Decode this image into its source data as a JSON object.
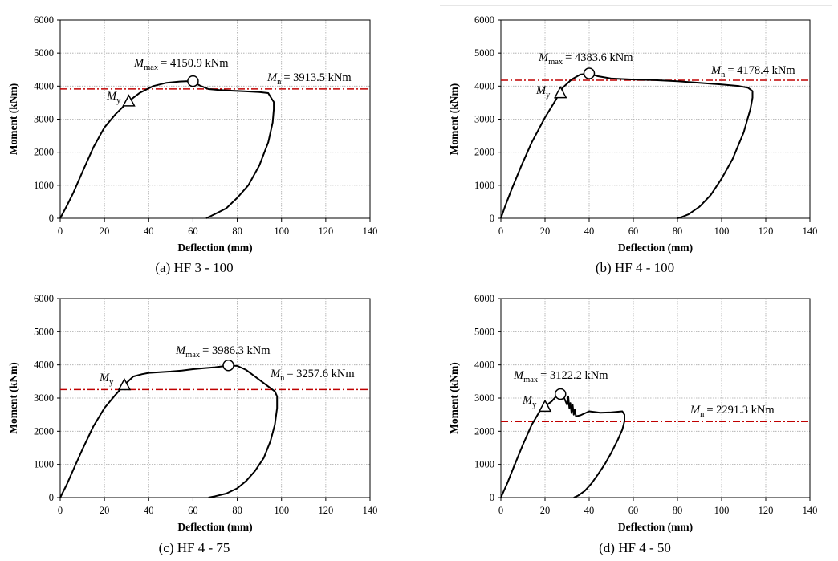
{
  "chart_data": [
    {
      "type": "line",
      "caption": "(a) HF 3 - 100",
      "xlabel": "Deflection (mm)",
      "ylabel": "Moment (kNm)",
      "xlim": [
        0,
        140
      ],
      "ylim": [
        0,
        6000
      ],
      "xticks": [
        "0",
        "20",
        "40",
        "60",
        "80",
        "100",
        "120",
        "140"
      ],
      "yticks": [
        "0",
        "1000",
        "2000",
        "3000",
        "4000",
        "5000",
        "6000"
      ],
      "grid": true,
      "series": [
        {
          "x": [
            0,
            3,
            6,
            10,
            15,
            20,
            25,
            31,
            36,
            42,
            48,
            54,
            57,
            60,
            63,
            67,
            72,
            78,
            84,
            90,
            94,
            95,
            96.5,
            96.5,
            96,
            94,
            90,
            85,
            80,
            75,
            70,
            66
          ],
          "y": [
            0,
            380,
            780,
            1400,
            2150,
            2750,
            3150,
            3550,
            3800,
            4000,
            4100,
            4140,
            4150,
            4150,
            4020,
            3910,
            3880,
            3860,
            3840,
            3820,
            3790,
            3680,
            3520,
            3300,
            2900,
            2300,
            1600,
            1000,
            620,
            300,
            130,
            0
          ]
        }
      ],
      "markers": {
        "max": {
          "x": 60,
          "y": 4150.9,
          "label": "= 4150.9 kNm",
          "symbol": "M",
          "sub": "max"
        },
        "yield": {
          "x": 31,
          "y": 3550,
          "symbol": "M",
          "sub": "y"
        }
      },
      "mn": {
        "value": 3913.5,
        "label": "= 3913.5 kNm",
        "symbol": "M",
        "sub": "n"
      }
    },
    {
      "type": "line",
      "caption": "(b) HF 4 - 100",
      "xlabel": "Deflection (mm)",
      "ylabel": "Moment (kNm)",
      "xlim": [
        0,
        140
      ],
      "ylim": [
        0,
        6000
      ],
      "xticks": [
        "0",
        "20",
        "40",
        "60",
        "80",
        "100",
        "120",
        "140"
      ],
      "yticks": [
        "0",
        "1000",
        "2000",
        "3000",
        "4000",
        "5000",
        "6000"
      ],
      "grid": true,
      "series": [
        {
          "x": [
            0,
            2,
            5,
            9,
            14,
            20,
            25,
            28,
            32,
            36,
            40,
            44,
            50,
            60,
            70,
            80,
            90,
            100,
            108,
            112,
            114,
            114,
            113,
            110,
            105,
            100,
            95,
            90,
            85,
            82,
            80
          ],
          "y": [
            0,
            380,
            900,
            1550,
            2300,
            3050,
            3600,
            3950,
            4200,
            4350,
            4380,
            4300,
            4230,
            4200,
            4180,
            4150,
            4100,
            4050,
            4000,
            3950,
            3850,
            3650,
            3300,
            2600,
            1800,
            1200,
            700,
            350,
            120,
            40,
            0
          ]
        }
      ],
      "markers": {
        "max": {
          "x": 40,
          "y": 4383.6,
          "label": "= 4383.6 kNm",
          "symbol": "M",
          "sub": "max"
        },
        "yield": {
          "x": 27,
          "y": 3800,
          "symbol": "M",
          "sub": "y"
        }
      },
      "mn": {
        "value": 4178.4,
        "label": "= 4178.4 kNm",
        "symbol": "M",
        "sub": "n"
      }
    },
    {
      "type": "line",
      "caption": "(c) HF 4 - 75",
      "xlabel": "Deflection (mm)",
      "ylabel": "Moment (kNm)",
      "xlim": [
        0,
        140
      ],
      "ylim": [
        0,
        6000
      ],
      "xticks": [
        "0",
        "20",
        "40",
        "60",
        "80",
        "100",
        "120",
        "140"
      ],
      "yticks": [
        "0",
        "1000",
        "2000",
        "3000",
        "4000",
        "5000",
        "6000"
      ],
      "grid": true,
      "series": [
        {
          "x": [
            0,
            3,
            6,
            10,
            15,
            20,
            25,
            29,
            33,
            37,
            40,
            45,
            50,
            55,
            60,
            65,
            70,
            76,
            80,
            84,
            88,
            92,
            95,
            97,
            98,
            98,
            97,
            95,
            92,
            88,
            84,
            80,
            75,
            70,
            67
          ],
          "y": [
            0,
            400,
            850,
            1450,
            2150,
            2700,
            3100,
            3400,
            3650,
            3720,
            3760,
            3780,
            3800,
            3830,
            3870,
            3900,
            3930,
            3980,
            3970,
            3850,
            3650,
            3450,
            3300,
            3200,
            3050,
            2700,
            2200,
            1700,
            1200,
            800,
            500,
            280,
            120,
            40,
            0
          ]
        }
      ],
      "markers": {
        "max": {
          "x": 76,
          "y": 3986.3,
          "label": "= 3986.3 kNm",
          "symbol": "M",
          "sub": "max"
        },
        "yield": {
          "x": 29,
          "y": 3400,
          "symbol": "M",
          "sub": "y"
        }
      },
      "mn": {
        "value": 3257.6,
        "label": "= 3257.6 kNm",
        "symbol": "M",
        "sub": "n"
      }
    },
    {
      "type": "line",
      "caption": "(d) HF 4 - 50",
      "xlabel": "Deflection (mm)",
      "ylabel": "Moment (kNm)",
      "xlim": [
        0,
        140
      ],
      "ylim": [
        0,
        6000
      ],
      "xticks": [
        "0",
        "20",
        "40",
        "60",
        "80",
        "100",
        "120",
        "140"
      ],
      "yticks": [
        "0",
        "1000",
        "2000",
        "3000",
        "4000",
        "5000",
        "6000"
      ],
      "grid": true,
      "series": [
        {
          "x": [
            0,
            3,
            6,
            10,
            14,
            18,
            20,
            23,
            25,
            27,
            28,
            29,
            30,
            30.5,
            31,
            31.5,
            32,
            32.5,
            33,
            33.5,
            34,
            36,
            40,
            45,
            50,
            55,
            56,
            56,
            55,
            53,
            50,
            47,
            44,
            41,
            38,
            35,
            33
          ],
          "y": [
            0,
            450,
            950,
            1600,
            2200,
            2650,
            2750,
            2900,
            3050,
            3120,
            3100,
            2950,
            2800,
            3050,
            2700,
            2850,
            2550,
            2800,
            2500,
            2650,
            2450,
            2480,
            2600,
            2560,
            2570,
            2600,
            2500,
            2300,
            2050,
            1750,
            1350,
            1000,
            700,
            420,
            200,
            60,
            0
          ]
        }
      ],
      "markers": {
        "max": {
          "x": 27,
          "y": 3122.2,
          "label": "= 3122.2 kNm",
          "symbol": "M",
          "sub": "max"
        },
        "yield": {
          "x": 20,
          "y": 2750,
          "symbol": "M",
          "sub": "y"
        }
      },
      "mn": {
        "value": 2291.3,
        "label": "= 2291.3 kNm",
        "symbol": "M",
        "sub": "n"
      }
    }
  ]
}
